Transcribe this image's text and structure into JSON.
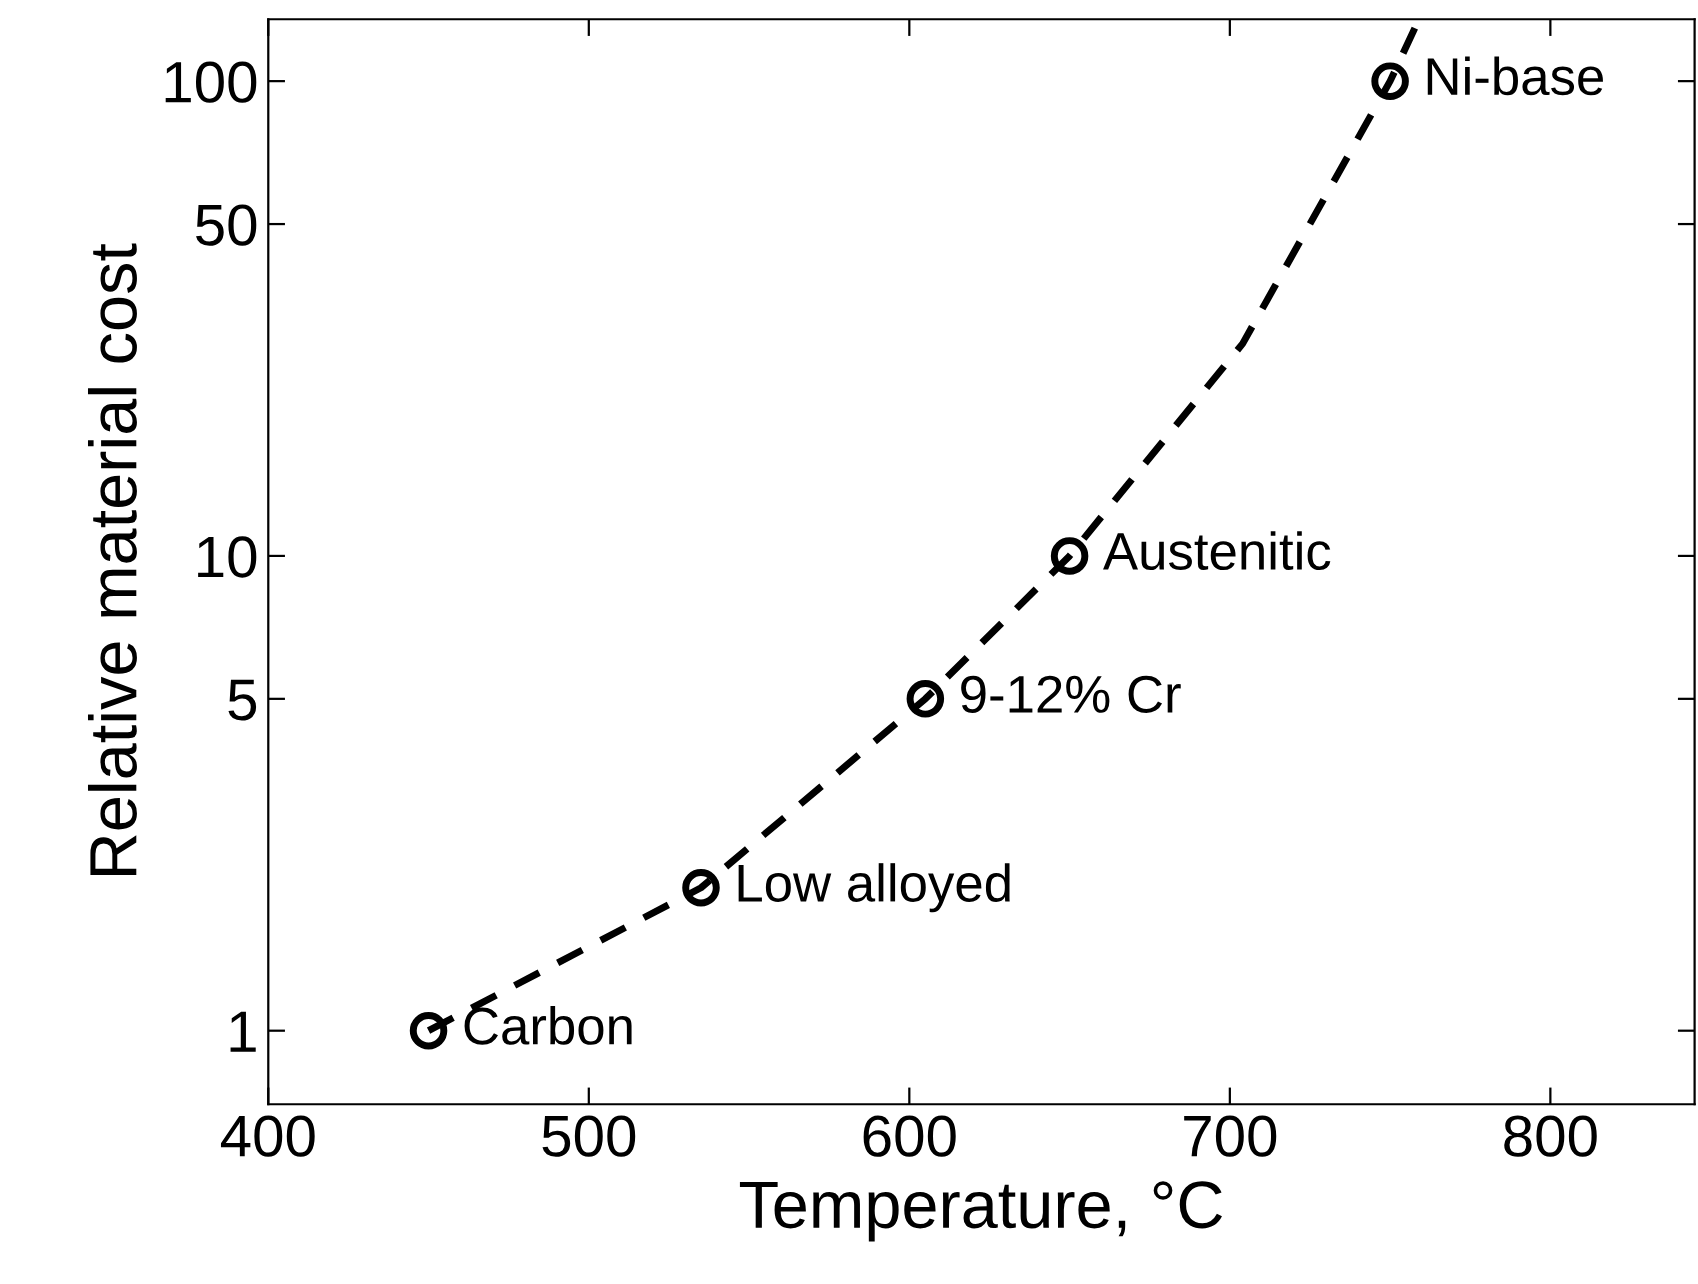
{
  "chart_data": {
    "type": "scatter",
    "xlabel": "Temperature, °C",
    "ylabel": "Relative material cost",
    "log": "y",
    "grid": false,
    "xlim": [
      400,
      845
    ],
    "xticks": [
      400,
      500,
      600,
      700,
      800
    ],
    "ylim": [
      0.7,
      135
    ],
    "yticks": [
      1,
      5,
      10,
      50,
      100
    ],
    "series": [
      {
        "type": "line",
        "color": "#000000",
        "line_style": "dashed",
        "marker": "none",
        "x": [
          450,
          535,
          605,
          650,
          704,
          750,
          759
        ],
        "values": [
          1,
          2,
          5,
          10,
          28,
          100,
          135
        ]
      },
      {
        "color": "#000000",
        "marker": "circle",
        "x": [
          450,
          535,
          605,
          650,
          750
        ],
        "values": [
          1,
          2,
          5,
          10,
          100
        ]
      }
    ],
    "annotations": [
      {
        "text": "Carbon",
        "x": 450,
        "y": 1
      },
      {
        "text": "Low alloyed",
        "x": 535,
        "y": 2
      },
      {
        "text": "9-12% Cr",
        "x": 605,
        "y": 5
      },
      {
        "text": "Austenitic",
        "x": 650,
        "y": 10
      },
      {
        "text": "Ni-base",
        "x": 750,
        "y": 100
      }
    ]
  }
}
